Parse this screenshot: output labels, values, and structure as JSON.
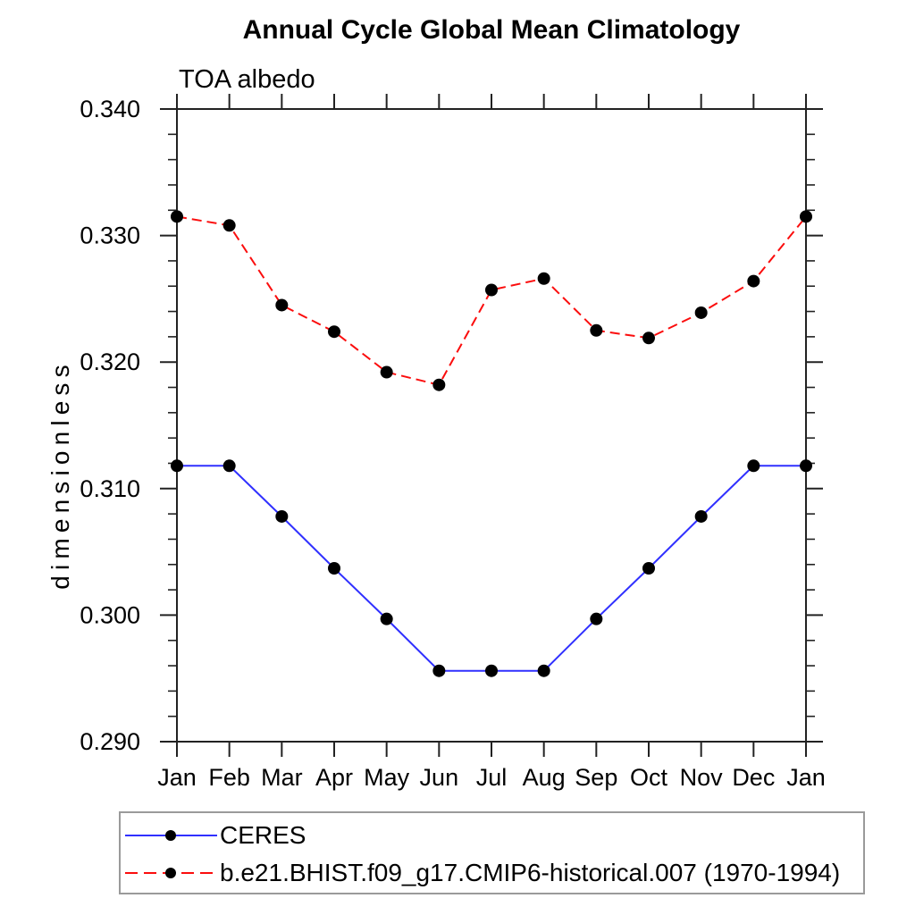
{
  "title": "Annual Cycle Global Mean Climatology",
  "subtitle": "TOA albedo",
  "colors": {
    "ceres_line": "#3030ff",
    "model_line": "#fb0d0d",
    "marker": "#000000",
    "axis": "#222222",
    "legend_border": "#9a9a9a"
  },
  "legend": {
    "items": [
      "CERES",
      "b.e21.BHIST.f09_g17.CMIP6-historical.007 (1970-1994)"
    ]
  },
  "chart_data": {
    "type": "line",
    "title": "Annual Cycle Global Mean Climatology",
    "subtitle": "TOA albedo",
    "xlabel": "",
    "ylabel": "dimensionless",
    "x_categories": [
      "Jan",
      "Feb",
      "Mar",
      "Apr",
      "May",
      "Jun",
      "Jul",
      "Aug",
      "Sep",
      "Oct",
      "Nov",
      "Dec",
      "Jan"
    ],
    "ylim": [
      0.29,
      0.34
    ],
    "ytick_labels": [
      "0.290",
      "0.300",
      "0.310",
      "0.320",
      "0.330",
      "0.340"
    ],
    "ytick_major_step": 0.01,
    "ytick_minor_step": 0.002,
    "grid": false,
    "legend_position": "bottom-box",
    "series": [
      {
        "name": "CERES",
        "style": "solid",
        "color": "#3030ff",
        "marker": "black-dot",
        "values": [
          0.3118,
          0.3118,
          0.3078,
          0.3037,
          0.2997,
          0.2956,
          0.2956,
          0.2956,
          0.2997,
          0.3037,
          0.3078,
          0.3118,
          0.3118
        ]
      },
      {
        "name": "b.e21.BHIST.f09_g17.CMIP6-historical.007 (1970-1994)",
        "style": "dashed",
        "color": "#fb0d0d",
        "marker": "black-dot",
        "values": [
          0.3315,
          0.3308,
          0.3245,
          0.3224,
          0.3192,
          0.3182,
          0.3257,
          0.3266,
          0.3225,
          0.3219,
          0.3239,
          0.3264,
          0.3315
        ]
      }
    ]
  }
}
